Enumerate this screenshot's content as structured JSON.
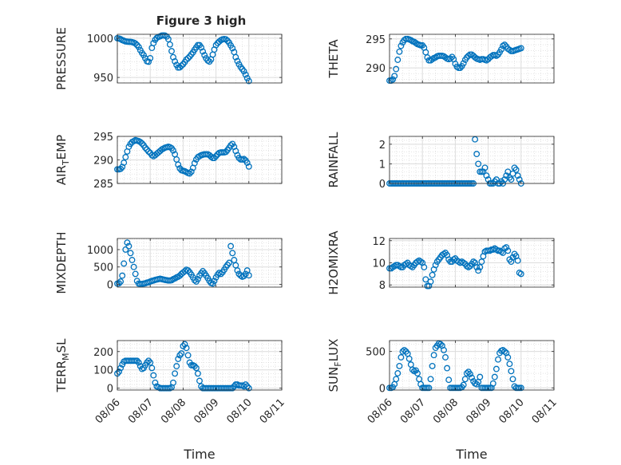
{
  "title": "Figure 3 high",
  "marker_color": "#0072BD",
  "x_ticks": [
    "08/06",
    "08/07",
    "08/08",
    "08/09",
    "08/10",
    "08/11"
  ],
  "xlabel": "Time",
  "chart_data": [
    {
      "type": "scatter",
      "ylabel": "PRESSURE",
      "ylim": [
        943,
        1005
      ],
      "yticks": [
        950,
        1000
      ],
      "xlim": [
        "08/06",
        "08/11"
      ],
      "grid": true,
      "x": [
        0.0,
        0.05,
        0.1,
        0.15,
        0.2,
        0.25,
        0.3,
        0.35,
        0.4,
        0.45,
        0.5,
        0.55,
        0.6,
        0.65,
        0.7,
        0.75,
        0.8,
        0.85,
        0.9,
        0.95,
        1.0,
        1.05,
        1.1,
        1.15,
        1.2,
        1.25,
        1.3,
        1.35,
        1.4,
        1.45,
        1.5,
        1.55,
        1.6,
        1.65,
        1.7,
        1.75,
        1.8,
        1.85,
        1.9,
        1.95,
        2.0,
        2.05,
        2.1,
        2.15,
        2.2,
        2.25,
        2.3,
        2.35,
        2.4,
        2.45,
        2.5,
        2.55,
        2.6,
        2.65,
        2.7,
        2.75,
        2.8,
        2.85,
        2.9,
        2.95,
        3.0,
        3.05,
        3.1,
        3.15,
        3.2,
        3.25,
        3.3,
        3.35,
        3.4,
        3.45,
        3.5,
        3.55,
        3.6,
        3.65,
        3.7,
        3.75,
        3.8,
        3.85,
        3.9,
        3.95,
        4.0
      ],
      "y": [
        1000,
        999.6,
        998.8,
        997.6,
        996.8,
        996,
        995.6,
        995.4,
        995.4,
        995,
        994.4,
        993.2,
        991.4,
        988.8,
        984.8,
        981.2,
        978.4,
        974.4,
        970.6,
        970,
        974.6,
        987.6,
        993.8,
        998,
        1000.4,
        1001.6,
        1002.4,
        1003.4,
        1003.6,
        1003.4,
        1002.2,
        998.8,
        992,
        983.6,
        975.8,
        970.4,
        966,
        962.6,
        962.8,
        965,
        966.8,
        969.6,
        972.8,
        974.6,
        976.6,
        979.4,
        982,
        985.4,
        988.4,
        991.2,
        991.2,
        988.2,
        983,
        978.4,
        974.4,
        971.6,
        970.2,
        973,
        979.2,
        985.6,
        991.2,
        993.8,
        995.8,
        997.6,
        998.6,
        999,
        998.6,
        996.8,
        994.2,
        990.8,
        987.2,
        982.4,
        975.8,
        970.8,
        966.8,
        963.2,
        960.6,
        957.8,
        953.6,
        949.2,
        945.4
      ]
    },
    {
      "type": "scatter",
      "ylabel": "THETA",
      "ylim": [
        287.4,
        295.8
      ],
      "yticks": [
        290,
        295
      ],
      "xlim": [
        "08/06",
        "08/11"
      ],
      "grid": true,
      "x": [
        0.0,
        0.05,
        0.1,
        0.15,
        0.2,
        0.25,
        0.3,
        0.35,
        0.4,
        0.45,
        0.5,
        0.55,
        0.6,
        0.65,
        0.7,
        0.75,
        0.8,
        0.85,
        0.9,
        0.95,
        1.0,
        1.05,
        1.1,
        1.15,
        1.2,
        1.25,
        1.3,
        1.35,
        1.4,
        1.45,
        1.5,
        1.55,
        1.6,
        1.65,
        1.7,
        1.75,
        1.8,
        1.85,
        1.9,
        1.95,
        2.0,
        2.05,
        2.1,
        2.15,
        2.2,
        2.25,
        2.3,
        2.35,
        2.4,
        2.45,
        2.5,
        2.55,
        2.6,
        2.65,
        2.7,
        2.75,
        2.8,
        2.85,
        2.9,
        2.95,
        3.0,
        3.05,
        3.1,
        3.15,
        3.2,
        3.25,
        3.3,
        3.35,
        3.4,
        3.45,
        3.5,
        3.55,
        3.6,
        3.65,
        3.7,
        3.75,
        3.8,
        3.85,
        3.9,
        3.95,
        4.0
      ],
      "y": [
        287.8,
        287.8,
        288,
        288.6,
        289.8,
        291.4,
        292.8,
        293.8,
        294.4,
        294.8,
        295,
        295,
        294.9,
        294.8,
        294.6,
        294.5,
        294.3,
        294.1,
        294,
        293.9,
        293.9,
        293.5,
        292.7,
        291.8,
        291.3,
        291.3,
        291.5,
        291.7,
        291.8,
        292,
        292.1,
        292.1,
        292.1,
        292,
        291.8,
        291.6,
        291.5,
        291.6,
        291.9,
        291.5,
        290.7,
        290.2,
        290,
        290,
        290.3,
        290.8,
        291.4,
        291.8,
        292.1,
        292.3,
        292.3,
        292.1,
        291.8,
        291.6,
        291.5,
        291.4,
        291.5,
        291.5,
        291.4,
        291.3,
        291.5,
        291.8,
        292,
        292.2,
        292.2,
        292.1,
        292.3,
        292.7,
        293.2,
        293.8,
        294,
        293.7,
        293.3,
        293.1,
        292.9,
        292.9,
        293,
        293.1,
        293.2,
        293.3,
        293.4
      ]
    },
    {
      "type": "scatter",
      "ylabel": "AIR_TEMP",
      "ylim": [
        285,
        295
      ],
      "yticks": [
        285,
        290,
        295
      ],
      "xlim": [
        "08/06",
        "08/11"
      ],
      "grid": true,
      "x": [
        0.0,
        0.05,
        0.1,
        0.15,
        0.2,
        0.25,
        0.3,
        0.35,
        0.4,
        0.45,
        0.5,
        0.55,
        0.6,
        0.65,
        0.7,
        0.75,
        0.8,
        0.85,
        0.9,
        0.95,
        1.0,
        1.05,
        1.1,
        1.15,
        1.2,
        1.25,
        1.3,
        1.35,
        1.4,
        1.45,
        1.5,
        1.55,
        1.6,
        1.65,
        1.7,
        1.75,
        1.8,
        1.85,
        1.9,
        1.95,
        2.0,
        2.05,
        2.1,
        2.15,
        2.2,
        2.25,
        2.3,
        2.35,
        2.4,
        2.45,
        2.5,
        2.55,
        2.6,
        2.65,
        2.7,
        2.75,
        2.8,
        2.85,
        2.9,
        2.95,
        3.0,
        3.05,
        3.1,
        3.15,
        3.2,
        3.25,
        3.3,
        3.35,
        3.4,
        3.45,
        3.5,
        3.55,
        3.6,
        3.65,
        3.7,
        3.75,
        3.8,
        3.85,
        3.9,
        3.95,
        4.0
      ],
      "y": [
        288,
        288,
        288.1,
        288.5,
        289.4,
        290.6,
        291.8,
        292.8,
        293.4,
        293.8,
        294,
        294.2,
        294.1,
        294,
        293.8,
        293.5,
        293.1,
        292.6,
        292.2,
        291.8,
        291.5,
        291,
        290.8,
        291,
        291.3,
        291.6,
        291.9,
        292.2,
        292.4,
        292.6,
        292.7,
        292.8,
        292.7,
        292.5,
        292,
        291.2,
        290.1,
        289,
        288.2,
        287.8,
        287.7,
        287.6,
        287.4,
        287.2,
        287.1,
        287.5,
        288.3,
        289.3,
        290.1,
        290.6,
        290.8,
        291,
        291.1,
        291.2,
        291.2,
        291.2,
        291,
        290.7,
        290.4,
        290.4,
        290.8,
        291.2,
        291.5,
        291.6,
        291.6,
        291.6,
        291.7,
        292.1,
        292.6,
        293.1,
        293.4,
        292.8,
        291.9,
        291,
        290.4,
        290.1,
        290.1,
        290.2,
        289.9,
        289.4,
        288.6
      ]
    },
    {
      "type": "scatter",
      "ylabel": "RAINFALL",
      "ylim": [
        0,
        2.4
      ],
      "yticks": [
        0,
        1,
        2
      ],
      "xlim": [
        "08/06",
        "08/11"
      ],
      "grid": true,
      "x": [
        0.0,
        0.05,
        0.1,
        0.15,
        0.2,
        0.25,
        0.3,
        0.35,
        0.4,
        0.45,
        0.5,
        0.55,
        0.6,
        0.65,
        0.7,
        0.75,
        0.8,
        0.85,
        0.9,
        0.95,
        1.0,
        1.05,
        1.1,
        1.15,
        1.2,
        1.25,
        1.3,
        1.35,
        1.4,
        1.45,
        1.5,
        1.55,
        1.6,
        1.65,
        1.7,
        1.75,
        1.8,
        1.85,
        1.9,
        1.95,
        2.0,
        2.05,
        2.1,
        2.15,
        2.2,
        2.25,
        2.3,
        2.35,
        2.4,
        2.45,
        2.5,
        2.55,
        2.6,
        2.65,
        2.7,
        2.75,
        2.8,
        2.85,
        2.9,
        2.95,
        3.0,
        3.05,
        3.1,
        3.15,
        3.2,
        3.25,
        3.3,
        3.35,
        3.4,
        3.45,
        3.5,
        3.55,
        3.6,
        3.65,
        3.7,
        3.75,
        3.8,
        3.85,
        3.9,
        3.95,
        4.0
      ],
      "y": [
        0,
        0,
        0,
        0,
        0,
        0,
        0,
        0,
        0,
        0,
        0,
        0,
        0,
        0,
        0,
        0,
        0,
        0,
        0,
        0,
        0,
        0,
        0,
        0,
        0,
        0,
        0,
        0,
        0,
        0,
        0,
        0,
        0,
        0,
        0,
        0,
        0,
        0,
        0,
        0,
        0,
        0,
        0,
        0,
        0,
        0,
        0,
        0,
        0,
        0,
        0,
        0,
        2.25,
        1.5,
        1.0,
        0.6,
        0.6,
        0.6,
        0.8,
        0.4,
        0.2,
        0,
        0,
        0,
        0.1,
        0.2,
        0,
        0,
        0.1,
        0,
        0.2,
        0.4,
        0.6,
        0.3,
        0.2,
        0.5,
        0.8,
        0.7,
        0.4,
        0.2,
        0
      ]
    },
    {
      "type": "scatter",
      "ylabel": "MIXDEPTH",
      "ylim": [
        -80,
        1320
      ],
      "yticks": [
        0,
        500,
        1000
      ],
      "xlim": [
        "08/06",
        "08/11"
      ],
      "grid": true,
      "x": [
        0.0,
        0.05,
        0.1,
        0.15,
        0.2,
        0.25,
        0.3,
        0.35,
        0.4,
        0.45,
        0.5,
        0.55,
        0.6,
        0.65,
        0.7,
        0.75,
        0.8,
        0.85,
        0.9,
        0.95,
        1.0,
        1.05,
        1.1,
        1.15,
        1.2,
        1.25,
        1.3,
        1.35,
        1.4,
        1.45,
        1.5,
        1.55,
        1.6,
        1.65,
        1.7,
        1.75,
        1.8,
        1.85,
        1.9,
        1.95,
        2.0,
        2.05,
        2.1,
        2.15,
        2.2,
        2.25,
        2.3,
        2.35,
        2.4,
        2.45,
        2.5,
        2.55,
        2.6,
        2.65,
        2.7,
        2.75,
        2.8,
        2.85,
        2.9,
        2.95,
        3.0,
        3.05,
        3.1,
        3.15,
        3.2,
        3.25,
        3.3,
        3.35,
        3.4,
        3.45,
        3.5,
        3.55,
        3.6,
        3.65,
        3.7,
        3.75,
        3.8,
        3.85,
        3.9,
        3.95,
        4.0
      ],
      "y": [
        20,
        30,
        80,
        250,
        600,
        1000,
        1200,
        1100,
        900,
        700,
        500,
        300,
        100,
        20,
        10,
        10,
        20,
        30,
        50,
        60,
        80,
        100,
        110,
        130,
        140,
        150,
        160,
        150,
        140,
        130,
        120,
        110,
        110,
        120,
        150,
        170,
        200,
        220,
        250,
        300,
        340,
        380,
        420,
        400,
        350,
        280,
        200,
        120,
        80,
        150,
        250,
        320,
        380,
        320,
        250,
        180,
        100,
        40,
        20,
        100,
        200,
        280,
        330,
        300,
        350,
        420,
        500,
        560,
        620,
        1100,
        900,
        700,
        550,
        400,
        300,
        250,
        220,
        240,
        300,
        400,
        260
      ]
    },
    {
      "type": "scatter",
      "ylabel": "H2OMIXRA",
      "ylim": [
        7.8,
        12.2
      ],
      "yticks": [
        8,
        10,
        12
      ],
      "xlim": [
        "08/06",
        "08/11"
      ],
      "grid": true,
      "x": [
        0.0,
        0.05,
        0.1,
        0.15,
        0.2,
        0.25,
        0.3,
        0.35,
        0.4,
        0.45,
        0.5,
        0.55,
        0.6,
        0.65,
        0.7,
        0.75,
        0.8,
        0.85,
        0.9,
        0.95,
        1.0,
        1.05,
        1.1,
        1.15,
        1.2,
        1.25,
        1.3,
        1.35,
        1.4,
        1.45,
        1.5,
        1.55,
        1.6,
        1.65,
        1.7,
        1.75,
        1.8,
        1.85,
        1.9,
        1.95,
        2.0,
        2.05,
        2.1,
        2.15,
        2.2,
        2.25,
        2.3,
        2.35,
        2.4,
        2.45,
        2.5,
        2.55,
        2.6,
        2.65,
        2.7,
        2.75,
        2.8,
        2.85,
        2.9,
        2.95,
        3.0,
        3.05,
        3.1,
        3.15,
        3.2,
        3.25,
        3.3,
        3.35,
        3.4,
        3.45,
        3.5,
        3.55,
        3.6,
        3.65,
        3.7,
        3.75,
        3.8,
        3.85,
        3.9,
        3.95,
        4.0
      ],
      "y": [
        9.5,
        9.5,
        9.6,
        9.7,
        9.8,
        9.8,
        9.7,
        9.6,
        9.6,
        9.8,
        9.9,
        10.0,
        9.8,
        9.7,
        9.6,
        9.8,
        10.0,
        10.1,
        10.2,
        10.1,
        10.0,
        9.6,
        8.5,
        7.9,
        7.9,
        8.3,
        8.9,
        9.4,
        9.8,
        10.1,
        10.3,
        10.5,
        10.7,
        10.8,
        10.9,
        10.7,
        10.3,
        10.1,
        10.1,
        10.3,
        10.4,
        10.2,
        10.1,
        10.0,
        10.1,
        10.0,
        9.9,
        9.7,
        9.6,
        9.7,
        9.9,
        10.1,
        10.0,
        9.6,
        9.3,
        9.6,
        10.1,
        10.6,
        11.0,
        11.1,
        11.1,
        11.1,
        11.2,
        11.2,
        11.3,
        11.2,
        11.1,
        11.1,
        11.0,
        10.9,
        11.3,
        11.4,
        11.1,
        10.3,
        10.1,
        10.5,
        10.8,
        10.6,
        10.2,
        9.1,
        9.0
      ]
    },
    {
      "type": "scatter",
      "ylabel": "TERR_MSL",
      "ylim": [
        -10,
        260
      ],
      "yticks": [
        0,
        100,
        200
      ],
      "xlim": [
        "08/06",
        "08/11"
      ],
      "grid": true,
      "x": [
        0.0,
        0.05,
        0.1,
        0.15,
        0.2,
        0.25,
        0.3,
        0.35,
        0.4,
        0.45,
        0.5,
        0.55,
        0.6,
        0.65,
        0.7,
        0.75,
        0.8,
        0.85,
        0.9,
        0.95,
        1.0,
        1.05,
        1.1,
        1.15,
        1.2,
        1.25,
        1.3,
        1.35,
        1.4,
        1.45,
        1.5,
        1.55,
        1.6,
        1.65,
        1.7,
        1.75,
        1.8,
        1.85,
        1.9,
        1.95,
        2.0,
        2.05,
        2.1,
        2.15,
        2.2,
        2.25,
        2.3,
        2.35,
        2.4,
        2.45,
        2.5,
        2.55,
        2.6,
        2.65,
        2.7,
        2.75,
        2.8,
        2.85,
        2.9,
        2.95,
        3.0,
        3.05,
        3.1,
        3.15,
        3.2,
        3.25,
        3.3,
        3.35,
        3.4,
        3.45,
        3.5,
        3.55,
        3.6,
        3.65,
        3.7,
        3.75,
        3.8,
        3.85,
        3.9,
        3.95,
        4.0
      ],
      "y": [
        80,
        90,
        110,
        130,
        145,
        150,
        150,
        150,
        150,
        150,
        150,
        150,
        150,
        140,
        120,
        105,
        110,
        125,
        140,
        150,
        140,
        110,
        70,
        30,
        10,
        5,
        0,
        0,
        0,
        0,
        0,
        0,
        0,
        5,
        30,
        80,
        120,
        160,
        180,
        190,
        230,
        240,
        220,
        180,
        140,
        125,
        125,
        120,
        110,
        80,
        40,
        10,
        0,
        0,
        0,
        0,
        0,
        0,
        0,
        0,
        0,
        0,
        0,
        0,
        0,
        0,
        0,
        0,
        0,
        0,
        0,
        10,
        20,
        20,
        15,
        15,
        15,
        10,
        20,
        10,
        0
      ]
    },
    {
      "type": "scatter",
      "ylabel": "SUN_FLUX",
      "ylim": [
        -30,
        650
      ],
      "yticks": [
        0,
        500
      ],
      "xlim": [
        "08/06",
        "08/11"
      ],
      "grid": true,
      "x": [
        0.0,
        0.05,
        0.1,
        0.15,
        0.2,
        0.25,
        0.3,
        0.35,
        0.4,
        0.45,
        0.5,
        0.55,
        0.6,
        0.65,
        0.7,
        0.75,
        0.8,
        0.85,
        0.9,
        0.95,
        1.0,
        1.05,
        1.1,
        1.15,
        1.2,
        1.25,
        1.3,
        1.35,
        1.4,
        1.45,
        1.5,
        1.55,
        1.6,
        1.65,
        1.7,
        1.75,
        1.8,
        1.85,
        1.9,
        1.95,
        2.0,
        2.05,
        2.1,
        2.15,
        2.2,
        2.25,
        2.3,
        2.35,
        2.4,
        2.45,
        2.5,
        2.55,
        2.6,
        2.65,
        2.7,
        2.75,
        2.8,
        2.85,
        2.9,
        2.95,
        3.0,
        3.05,
        3.1,
        3.15,
        3.2,
        3.25,
        3.3,
        3.35,
        3.4,
        3.45,
        3.5,
        3.55,
        3.6,
        3.65,
        3.7,
        3.75,
        3.8,
        3.85,
        3.9,
        3.95,
        4.0
      ],
      "y": [
        0,
        0,
        10,
        50,
        120,
        200,
        300,
        420,
        500,
        520,
        500,
        470,
        400,
        320,
        250,
        230,
        240,
        200,
        120,
        50,
        0,
        0,
        0,
        0,
        0,
        120,
        300,
        450,
        550,
        580,
        610,
        600,
        580,
        520,
        420,
        270,
        110,
        0,
        0,
        0,
        0,
        0,
        0,
        0,
        10,
        40,
        120,
        200,
        220,
        190,
        140,
        90,
        60,
        50,
        80,
        150,
        0,
        0,
        0,
        0,
        0,
        0,
        0,
        60,
        150,
        260,
        390,
        480,
        510,
        520,
        500,
        480,
        420,
        330,
        230,
        120,
        20,
        0,
        0,
        0,
        0
      ]
    }
  ]
}
